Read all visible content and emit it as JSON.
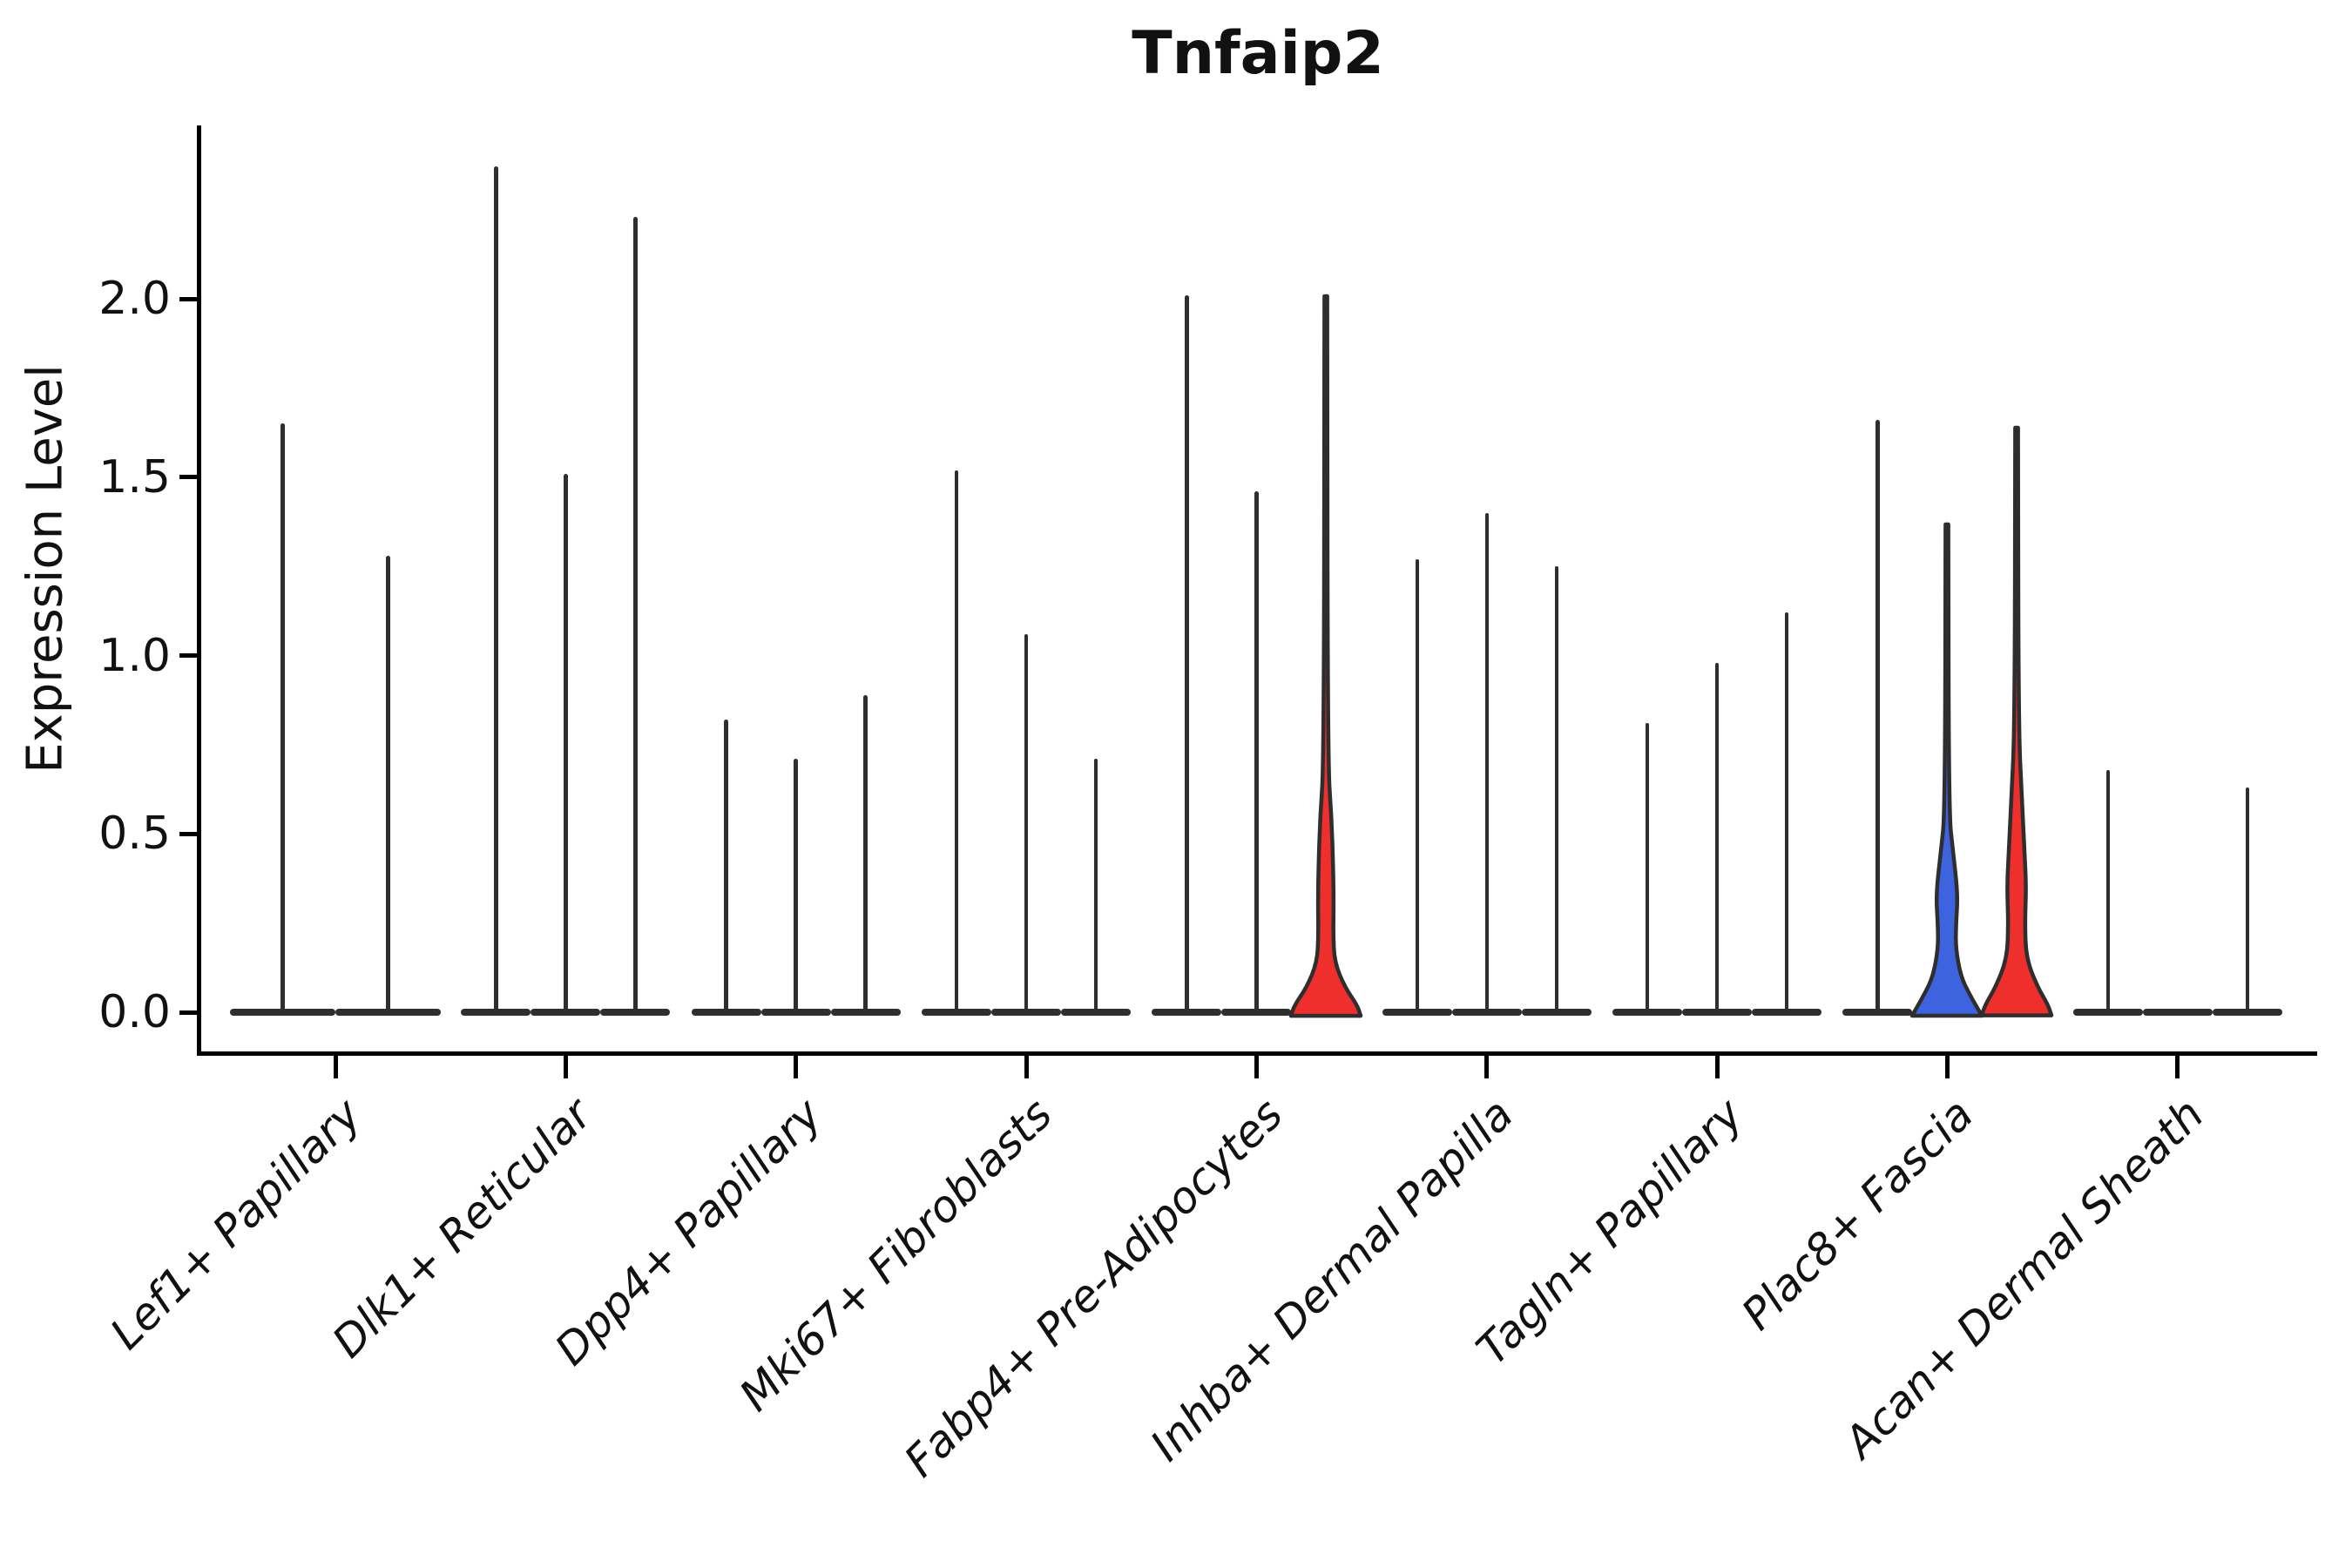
{
  "chart_data": {
    "type": "violin",
    "title": "Tnfaip2",
    "xlabel": "",
    "ylabel": "Expression Level",
    "yticks": [
      "0.0",
      "0.5",
      "1.0",
      "1.5",
      "2.0"
    ],
    "ytick_values": [
      0.0,
      0.5,
      1.0,
      1.5,
      2.0
    ],
    "ylim": [
      -0.11,
      2.49
    ],
    "grid": false,
    "legend": "none",
    "colors": {
      "outline": "#2e2e2e",
      "highlight_red": "#ef2f2b",
      "highlight_blue": "#3e63de"
    },
    "categories": [
      {
        "label": "Lef1+ Papillary",
        "violins": [
          {
            "offset": -60.5,
            "width": 121,
            "max_expression": 1.65,
            "fill": "none"
          },
          {
            "offset": 60.5,
            "width": 121,
            "max_expression": 1.28,
            "fill": "none"
          }
        ]
      },
      {
        "label": "Dlk1+ Reticular",
        "violins": [
          {
            "offset": -80,
            "width": 80,
            "max_expression": 2.37,
            "fill": "none"
          },
          {
            "offset": 0,
            "width": 80,
            "max_expression": 1.51,
            "fill": "none"
          },
          {
            "offset": 80,
            "width": 80,
            "max_expression": 2.23,
            "fill": "none"
          }
        ]
      },
      {
        "label": "Dpp4+ Papillary",
        "violins": [
          {
            "offset": -80,
            "width": 80,
            "max_expression": 0.82,
            "fill": "none"
          },
          {
            "offset": 0,
            "width": 80,
            "max_expression": 0.71,
            "fill": "none"
          },
          {
            "offset": 80,
            "width": 80,
            "max_expression": 0.89,
            "fill": "none"
          }
        ]
      },
      {
        "label": "Mki67+ Fibroblasts",
        "violins": [
          {
            "offset": -80,
            "width": 80,
            "max_expression": 1.52,
            "fill": "none"
          },
          {
            "offset": 0,
            "width": 80,
            "max_expression": 1.06,
            "fill": "none"
          },
          {
            "offset": 80,
            "width": 80,
            "max_expression": 0.71,
            "fill": "none"
          }
        ]
      },
      {
        "label": "Fabp4+ Pre-Adipocytes",
        "violins": [
          {
            "offset": -80,
            "width": 80,
            "max_expression": 2.01,
            "fill": "none"
          },
          {
            "offset": 0,
            "width": 80,
            "max_expression": 1.46,
            "fill": "none"
          },
          {
            "offset": 80,
            "width": 80,
            "max_expression": 2.01,
            "fill": "red",
            "profile": [
              [
                0.7,
                2.2
              ],
              [
                0.55,
                6.5
              ],
              [
                0.4,
                8.5
              ],
              [
                0.3,
                9.0
              ],
              [
                0.22,
                8.5
              ],
              [
                0.14,
                10
              ],
              [
                0.07,
                22
              ],
              [
                0.02,
                36
              ],
              [
                0.0,
                40
              ]
            ]
          }
        ]
      },
      {
        "label": "Inhba+ Dermal Papilla",
        "violins": [
          {
            "offset": -80,
            "width": 80,
            "max_expression": 1.27,
            "fill": "none"
          },
          {
            "offset": 0,
            "width": 80,
            "max_expression": 1.4,
            "fill": "none"
          },
          {
            "offset": 80,
            "width": 80,
            "max_expression": 1.25,
            "fill": "none"
          }
        ]
      },
      {
        "label": "Tagln+ Papillary",
        "violins": [
          {
            "offset": -80,
            "width": 80,
            "max_expression": 0.81,
            "fill": "none"
          },
          {
            "offset": 0,
            "width": 80,
            "max_expression": 0.98,
            "fill": "none"
          },
          {
            "offset": 80,
            "width": 80,
            "max_expression": 1.12,
            "fill": "none"
          }
        ]
      },
      {
        "label": "Plac8+ Fascia",
        "violins": [
          {
            "offset": -80,
            "width": 80,
            "max_expression": 1.66,
            "fill": "none"
          },
          {
            "offset": 0,
            "width": 80,
            "max_expression": 1.37,
            "fill": "blue",
            "profile": [
              [
                0.56,
                2.2
              ],
              [
                0.45,
                7
              ],
              [
                0.33,
                12.5
              ],
              [
                0.25,
                10.5
              ],
              [
                0.18,
                10
              ],
              [
                0.1,
                16
              ],
              [
                0.05,
                26
              ],
              [
                0.0,
                40
              ]
            ]
          },
          {
            "offset": 80,
            "width": 80,
            "max_expression": 1.64,
            "fill": "red",
            "profile": [
              [
                0.8,
                2.2
              ],
              [
                0.6,
                6
              ],
              [
                0.45,
                9
              ],
              [
                0.35,
                11
              ],
              [
                0.25,
                9.5
              ],
              [
                0.15,
                11
              ],
              [
                0.07,
                24
              ],
              [
                0.02,
                36
              ],
              [
                0.0,
                40
              ]
            ]
          }
        ]
      },
      {
        "label": "Acan+ Dermal Sheath",
        "violins": [
          {
            "offset": -80,
            "width": 80,
            "max_expression": 0.68,
            "fill": "none"
          },
          {
            "offset": 0,
            "width": 80,
            "max_expression": 0.0,
            "fill": "none"
          },
          {
            "offset": 80,
            "width": 80,
            "max_expression": 0.63,
            "fill": "none"
          }
        ]
      }
    ]
  }
}
